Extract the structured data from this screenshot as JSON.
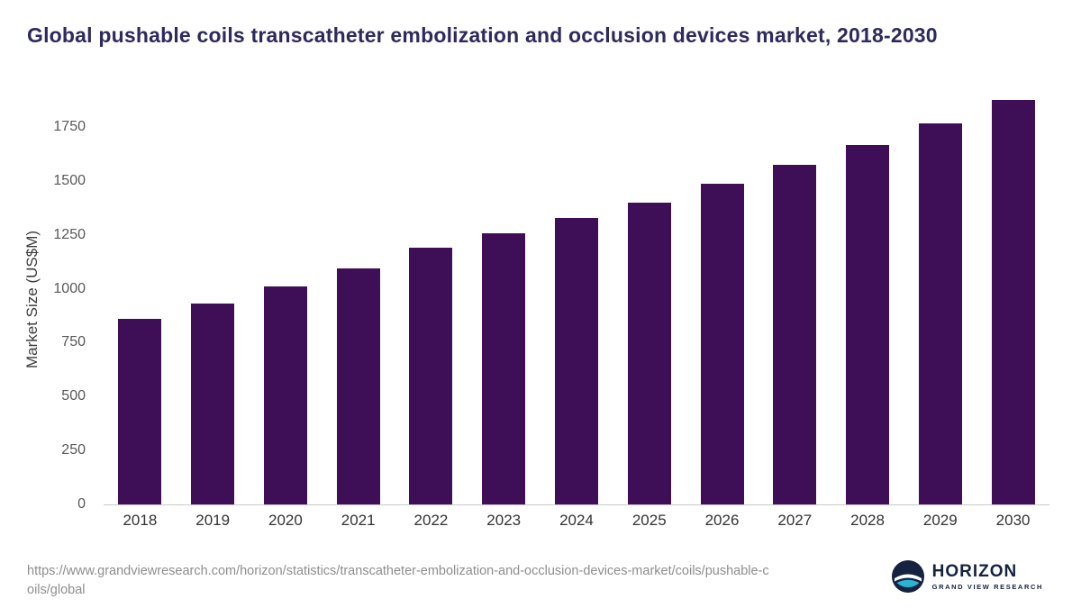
{
  "title": "Global pushable coils transcatheter embolization and occlusion devices market, 2018-2030",
  "source": {
    "url_line1": "https://www.grandviewresearch.com/horizon/statistics/transcatheter-embolization-and-occlusion-devices-market/coils/pushable-c",
    "url_line2": "oils/global"
  },
  "logo": {
    "name": "HORIZON",
    "tagline": "GRAND VIEW RESEARCH"
  },
  "colors": {
    "bar": "#3e0f56",
    "title": "#2d2a5e",
    "ytick_text": "#595959",
    "xtick_text": "#333333",
    "url_text": "#8e8e8e",
    "logo_navy": "#152240",
    "logo_teal": "#2bb3d4"
  },
  "chart_data": {
    "type": "bar",
    "title": "Global pushable coils transcatheter embolization and occlusion devices market, 2018-2030",
    "categories": [
      "2018",
      "2019",
      "2020",
      "2021",
      "2022",
      "2023",
      "2024",
      "2025",
      "2026",
      "2027",
      "2028",
      "2029",
      "2030"
    ],
    "values": [
      860,
      930,
      1010,
      1095,
      1190,
      1255,
      1330,
      1400,
      1485,
      1575,
      1665,
      1765,
      1875
    ],
    "xlabel": "",
    "ylabel": "Market Size (US$M)",
    "yticks": [
      0,
      250,
      500,
      750,
      1000,
      1250,
      1500,
      1750
    ],
    "ylim": [
      0,
      1900
    ],
    "grid": false,
    "legend": "none",
    "bar_color": "#3e0f56"
  }
}
